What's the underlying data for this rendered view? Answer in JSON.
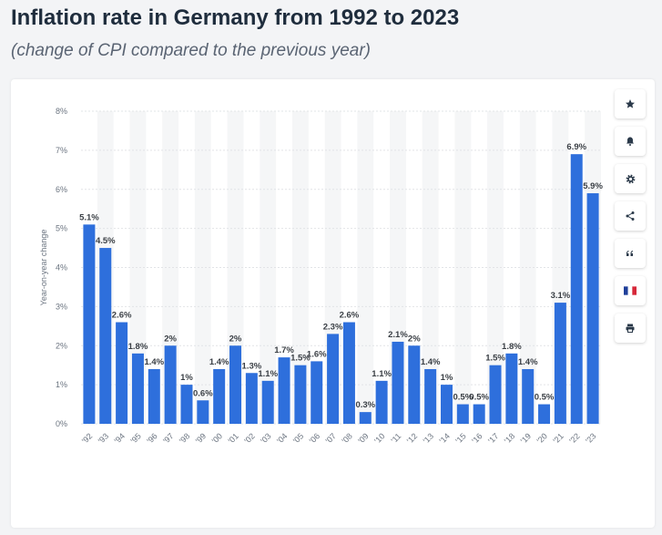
{
  "header": {
    "title": "Inflation rate in Germany from 1992 to 2023",
    "subtitle": "(change of CPI compared to the previous year)"
  },
  "toolbar": [
    {
      "name": "star-button",
      "icon": "star-icon",
      "glyph": "★"
    },
    {
      "name": "notification-button",
      "icon": "bell-icon",
      "glyph": "🔔"
    },
    {
      "name": "settings-button",
      "icon": "gear-icon",
      "glyph": "⚙"
    },
    {
      "name": "share-button",
      "icon": "share-icon",
      "glyph": "share"
    },
    {
      "name": "cite-button",
      "icon": "quote-icon",
      "glyph": "“"
    },
    {
      "name": "language-button",
      "icon": "french-flag-icon",
      "glyph": "flag"
    },
    {
      "name": "print-button",
      "icon": "printer-icon",
      "glyph": "print"
    }
  ],
  "chart_data": {
    "type": "bar",
    "ylabel": "Year-on-year change",
    "xlabel": "",
    "ylim": [
      0,
      8
    ],
    "yticks": [
      "0%",
      "1%",
      "2%",
      "3%",
      "4%",
      "5%",
      "6%",
      "7%",
      "8%"
    ],
    "bar_color": "#2e6fdc",
    "categories": [
      "'92",
      "'93",
      "'94",
      "'95",
      "'96",
      "'97",
      "'98",
      "'99",
      "'00",
      "'01",
      "'02",
      "'03",
      "'04",
      "'05",
      "'06",
      "'07",
      "'08",
      "'09",
      "'10",
      "'11",
      "'12",
      "'13",
      "'14",
      "'15",
      "'16",
      "'17",
      "'18",
      "'19",
      "'20",
      "'21",
      "'22",
      "'23"
    ],
    "values": [
      5.1,
      4.5,
      2.6,
      1.8,
      1.4,
      2,
      1,
      0.6,
      1.4,
      2,
      1.3,
      1.1,
      1.7,
      1.5,
      1.6,
      2.3,
      2.6,
      0.3,
      1.1,
      2.1,
      2,
      1.4,
      1,
      0.5,
      0.5,
      1.5,
      1.8,
      1.4,
      0.5,
      3.1,
      6.9,
      5.9
    ],
    "data_labels": [
      "5.1%",
      "4.5%",
      "2.6%",
      "1.8%",
      "1.4%",
      "2%",
      "1%",
      "0.6%",
      "1.4%",
      "2%",
      "1.3%",
      "1.1%",
      "1.7%",
      "1.5%",
      "1.6%",
      "2.3%",
      "2.6%",
      "0.3%",
      "1.1%",
      "2.1%",
      "2%",
      "1.4%",
      "1%",
      "0.5%",
      "0.5%",
      "1.5%",
      "1.8%",
      "1.4%",
      "0.5%",
      "3.1%",
      "6.9%",
      "5.9%"
    ]
  }
}
